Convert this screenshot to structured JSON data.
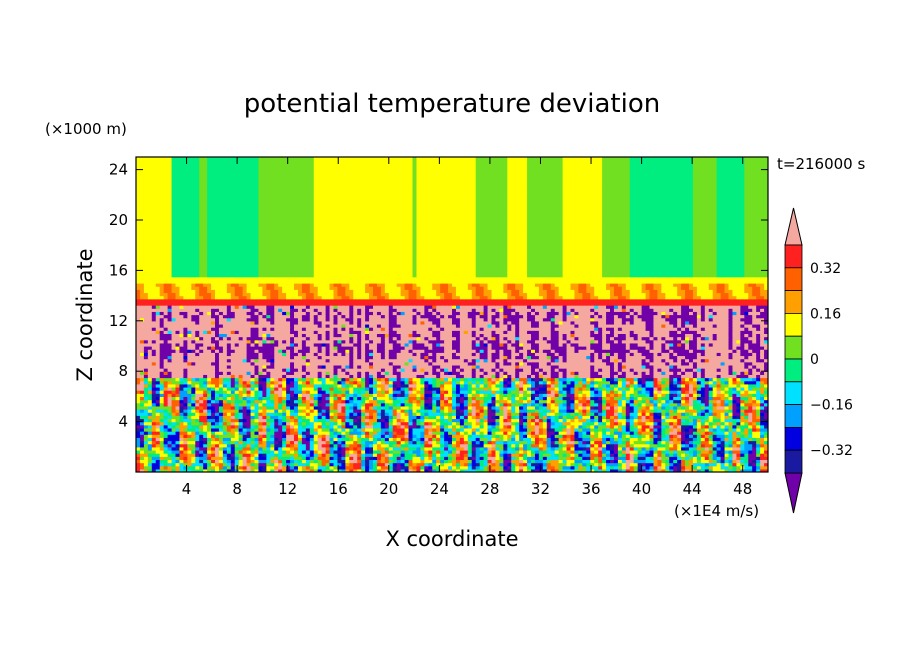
{
  "chart_data": {
    "type": "heatmap",
    "title": "potential temperature deviation",
    "xlabel": "X coordinate",
    "ylabel": "Z coordinate",
    "x_unit_label": "(×1E4 m/s)",
    "y_unit_label": "(×1000 m)",
    "time_label": "t=216000 s",
    "xlim": [
      0,
      50
    ],
    "ylim": [
      0,
      25
    ],
    "x_ticks": [
      4,
      8,
      12,
      16,
      20,
      24,
      28,
      32,
      36,
      40,
      44,
      48
    ],
    "y_ticks": [
      4,
      8,
      12,
      16,
      20,
      24
    ],
    "colorbar": {
      "levels": [
        -0.4,
        -0.32,
        -0.24,
        -0.16,
        -0.08,
        0,
        0.08,
        0.16,
        0.24,
        0.32,
        0.4
      ],
      "tick_labels": [
        "0.32",
        "0.16",
        "0",
        "−0.16",
        "−0.32"
      ],
      "tick_values": [
        0.32,
        0.16,
        0,
        -0.16,
        -0.32
      ],
      "colors": [
        "#7000a8",
        "#1a1aa0",
        "#0000e0",
        "#00a0ff",
        "#00e0ff",
        "#00ee80",
        "#70e020",
        "#ffff00",
        "#ffa000",
        "#ff6000",
        "#ff2020",
        "#f5a8a0"
      ],
      "extend": "both"
    },
    "layers": [
      {
        "z_range": [
          15,
          25
        ],
        "value": 0.02,
        "description_value": "mostly 0 to 0.08 with bands"
      },
      {
        "z_range": [
          13,
          15
        ],
        "value": 0.16
      },
      {
        "z_range": [
          7.5,
          13
        ],
        "value": 0.4
      },
      {
        "z_range": [
          0,
          7.5
        ],
        "value": 0.0
      }
    ]
  }
}
